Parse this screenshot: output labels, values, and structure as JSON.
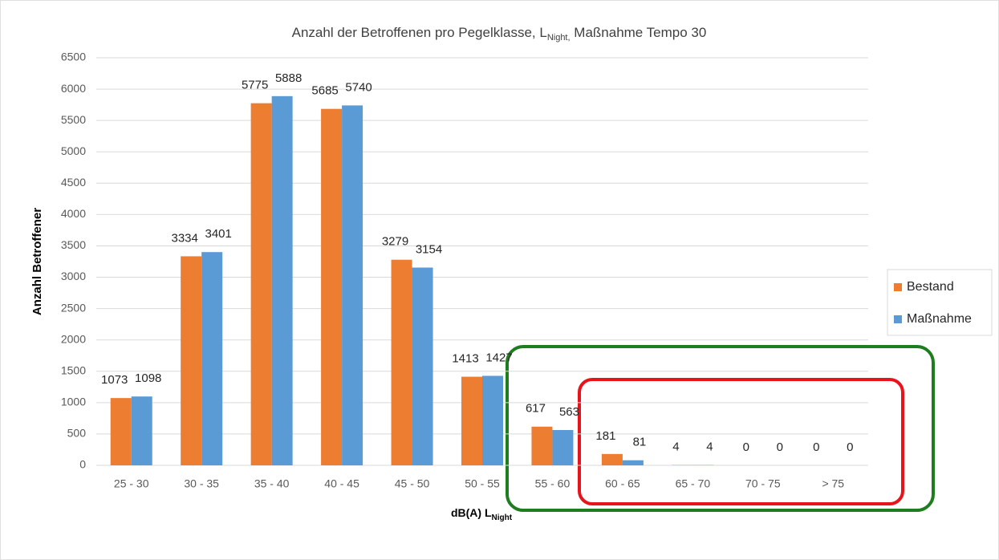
{
  "chart_data": {
    "type": "bar",
    "title": "Anzahl der Betroffenen pro Pegelklasse, L",
    "title_subscript": "Night,",
    "title_suffix": " Maßnahme Tempo 30",
    "y_label": "Anzahl Betroffener",
    "x_label": "dB(A) L",
    "x_label_subscript": "Night",
    "categories": [
      "25 - 30",
      "30 - 35",
      "35 - 40",
      "40 - 45",
      "45 - 50",
      "50 - 55",
      "55 - 60",
      "60 - 65",
      "65 - 70",
      "70 - 75",
      "> 75"
    ],
    "series": [
      {
        "name": "Bestand",
        "color": "#ed7d31",
        "values": [
          1073,
          3334,
          5775,
          5685,
          3279,
          1413,
          617,
          181,
          4,
          0,
          0
        ]
      },
      {
        "name": "Maßnahme",
        "color": "#5b9bd5",
        "values": [
          1098,
          3401,
          5888,
          5740,
          3154,
          1427,
          563,
          81,
          4,
          0,
          0
        ]
      }
    ],
    "ylim": [
      0,
      6500
    ],
    "yticks": [
      0,
      500,
      1000,
      1500,
      2000,
      2500,
      3000,
      3500,
      4000,
      4500,
      5000,
      5500,
      6000,
      6500
    ],
    "grid": true,
    "legend": "right"
  }
}
